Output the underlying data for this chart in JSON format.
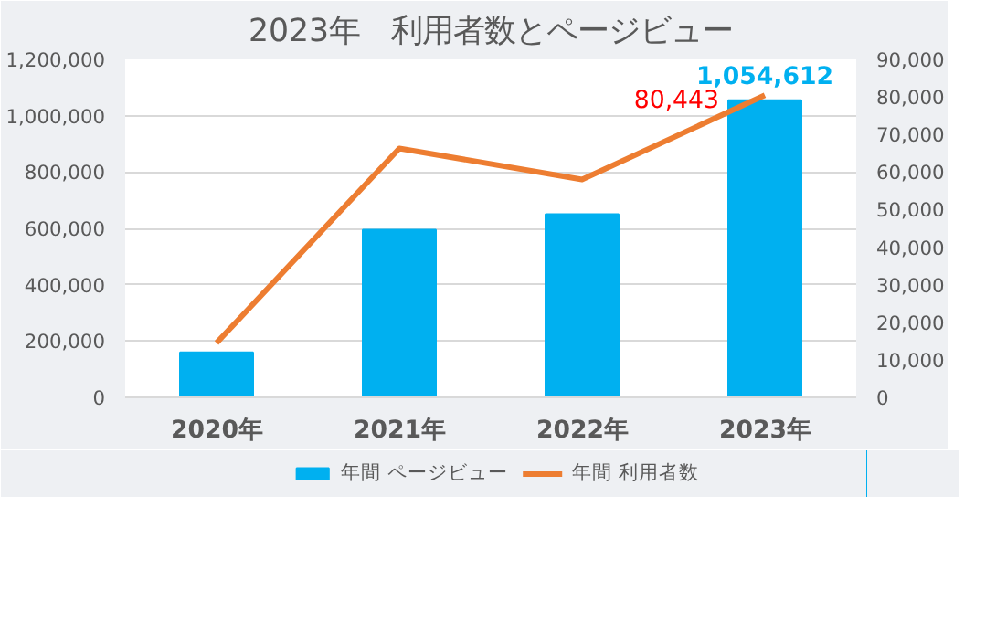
{
  "chart_data": {
    "type": "bar",
    "title": "2023年　利用者数とページビュー",
    "categories": [
      "2020年",
      "2021年",
      "2022年",
      "2023年"
    ],
    "series": [
      {
        "name": "年間 ページビュー",
        "color": "#00b0f0",
        "values": [
          160000,
          595000,
          650000,
          1054612
        ],
        "value_labels": [
          null,
          null,
          null,
          "1,054,612"
        ]
      },
      {
        "name": "年間 利用者数",
        "type": "line",
        "axis": "y2",
        "color": "#ed7d31",
        "values": [
          14500,
          66300,
          58000,
          80443
        ],
        "value_labels": [
          null,
          null,
          null,
          "80,443"
        ]
      }
    ],
    "ylim": [
      0,
      1200000
    ],
    "yticks": [
      {
        "value": 0,
        "label": "0"
      },
      {
        "value": 200000,
        "label": "200,000"
      },
      {
        "value": 400000,
        "label": "400,000"
      },
      {
        "value": 600000,
        "label": "600,000"
      },
      {
        "value": 800000,
        "label": "800,000"
      },
      {
        "value": 1000000,
        "label": "1,000,000"
      },
      {
        "value": 1200000,
        "label": "1,200,000"
      }
    ],
    "y2lim": [
      0,
      90000
    ],
    "y2ticks": [
      {
        "value": 0,
        "label": "0"
      },
      {
        "value": 10000,
        "label": "10,000"
      },
      {
        "value": 20000,
        "label": "20,000"
      },
      {
        "value": 30000,
        "label": "30,000"
      },
      {
        "value": 40000,
        "label": "40,000"
      },
      {
        "value": 50000,
        "label": "50,000"
      },
      {
        "value": 60000,
        "label": "60,000"
      },
      {
        "value": 70000,
        "label": "70,000"
      },
      {
        "value": 80000,
        "label": "80,000"
      },
      {
        "value": 90000,
        "label": "90,000"
      }
    ],
    "grid": "y",
    "legend": "bottom"
  }
}
